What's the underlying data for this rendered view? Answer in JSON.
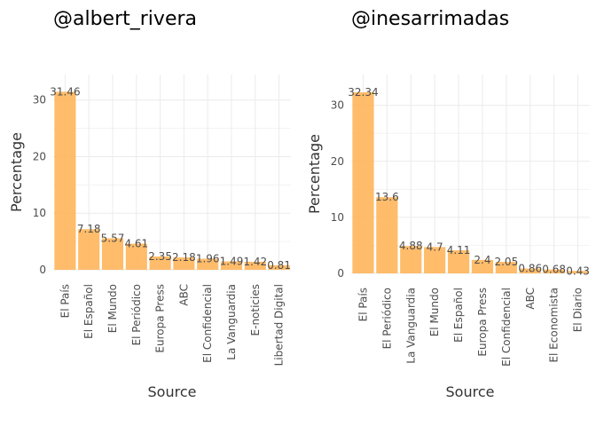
{
  "chart_data": [
    {
      "type": "bar",
      "title": "@albert_rivera",
      "xlabel": "Source",
      "ylabel": "Percentage",
      "ylim": [
        0,
        34.5
      ],
      "yticks": [
        0,
        10,
        20,
        30
      ],
      "grid": true,
      "bar_color": "#ffb55a",
      "categories": [
        "El País",
        "El Español",
        "El Mundo",
        "El Periódico",
        "Europa Press",
        "ABC",
        "El Confidencial",
        "La Vanguardia",
        "E-noticies",
        "Libertad Digital"
      ],
      "values": [
        31.46,
        7.18,
        5.57,
        4.61,
        2.35,
        2.18,
        1.96,
        1.49,
        1.42,
        0.81
      ],
      "labels": [
        "31.46",
        "7.18",
        "5.57",
        "4.61",
        "2.35",
        "2.18",
        "1.96",
        "1.49",
        "1.42",
        "0.81"
      ]
    },
    {
      "type": "bar",
      "title": "@inesarrimadas",
      "xlabel": "Source",
      "ylabel": "Percentage",
      "ylim": [
        0,
        35.5
      ],
      "yticks": [
        0,
        10,
        20,
        30
      ],
      "grid": true,
      "bar_color": "#ffb55a",
      "categories": [
        "El País",
        "El Periódico",
        "La Vanguardia",
        "El Mundo",
        "El Español",
        "Europa Press",
        "El Confidencial",
        "ABC",
        "El Economista",
        "El Diario"
      ],
      "values": [
        32.34,
        13.6,
        4.88,
        4.7,
        4.11,
        2.4,
        2.05,
        0.86,
        0.68,
        0.43
      ],
      "labels": [
        "32.34",
        "13.6",
        "4.88",
        "4.7",
        "4.11",
        "2.4",
        "2.05",
        "0.86",
        "0.68",
        "0.43"
      ]
    }
  ]
}
